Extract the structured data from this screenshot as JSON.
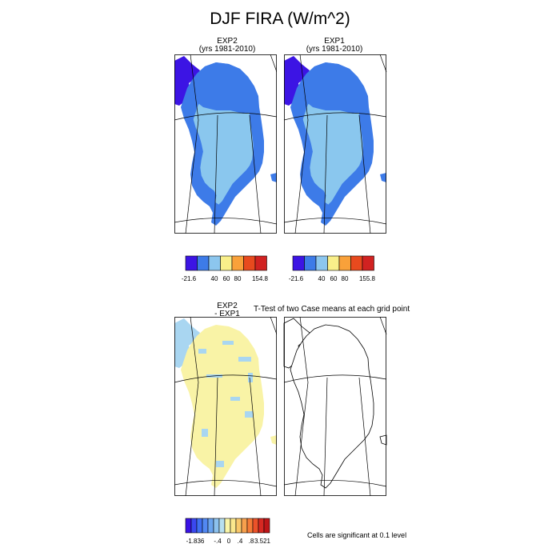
{
  "title": "DJF FIRA (W/m^2)",
  "colors": {
    "diverging": [
      "#3a12e6",
      "#3a48f0",
      "#3f6ff2",
      "#5288f2",
      "#6aa4ef",
      "#8cc1ee",
      "#b7e0f0",
      "#faf6a8",
      "#fbe88d",
      "#f9c86a",
      "#f7a04d",
      "#f57c37",
      "#ec5229",
      "#d72922",
      "#bd1517"
    ],
    "abs_bar": [
      "#3c14e4",
      "#3d7be8",
      "#8cc6ee",
      "#f9ef8a",
      "#f9a13a",
      "#e84a1e",
      "#d12221"
    ],
    "land_abs": "#8ac7ee",
    "coast_abs": "#3d7be8",
    "north_abs": "#3c14e4",
    "land_diff": "#f9f3a6",
    "spot_diff": "#a9d6f1"
  },
  "panels": [
    {
      "name": "EXP2",
      "subtitle": "(yrs 1981-2010)"
    },
    {
      "name": "EXP1",
      "subtitle": "(yrs 1981-2010)"
    }
  ],
  "colorbars": [
    {
      "labels": [
        "-21.6",
        "40",
        "60",
        "80",
        "154.8"
      ]
    },
    {
      "labels": [
        "-21.6",
        "40",
        "60",
        "80",
        "155.8"
      ]
    }
  ],
  "diff": {
    "name_line1": "EXP2",
    "name_line2": "- EXP1",
    "ttest_title": "T-Test of two Case means at each grid point",
    "colorbar_labels": [
      "-1.836",
      "-.4",
      "0",
      ".4",
      ".8",
      "3.521"
    ],
    "significance_note": "Cells are significant at 0.1 level"
  },
  "chart_data": [
    {
      "type": "heatmap",
      "title": "EXP2",
      "subtitle": "(yrs 1981-2010)",
      "colorbar_ticks": [
        -21.6,
        40,
        60,
        80,
        154.8
      ]
    },
    {
      "type": "heatmap",
      "title": "EXP1",
      "subtitle": "(yrs 1981-2010)",
      "colorbar_ticks": [
        -21.6,
        40,
        60,
        80,
        155.8
      ]
    },
    {
      "type": "heatmap",
      "title": "EXP2 - EXP1",
      "colorbar_ticks": [
        -1.836,
        -0.4,
        0,
        0.4,
        0.8,
        3.521
      ]
    },
    {
      "type": "heatmap",
      "title": "T-Test of two Case means at each grid point",
      "note": "Cells are significant at 0.1 level"
    }
  ]
}
